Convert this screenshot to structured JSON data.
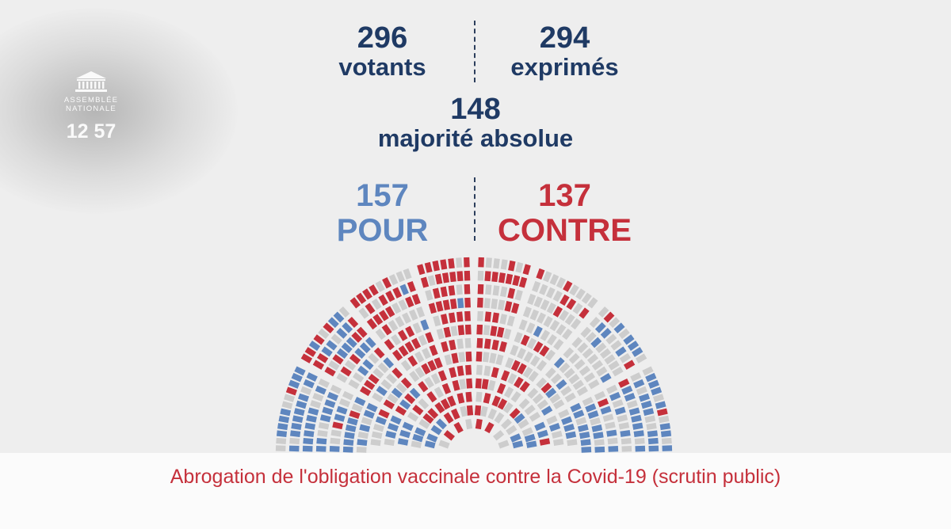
{
  "branding": {
    "logo_line1": "ASSEMBLÉE",
    "logo_line2": "NATIONALE",
    "clock": "12 57",
    "icon": "assemblee-building-icon"
  },
  "stats": {
    "votants": {
      "value": "296",
      "label": "votants"
    },
    "exprimes": {
      "value": "294",
      "label": "exprimés"
    },
    "majorite": {
      "value": "148",
      "label": "majorité absolue"
    },
    "pour": {
      "value": "157",
      "label": "POUR"
    },
    "contre": {
      "value": "137",
      "label": "CONTRE"
    }
  },
  "caption": "Abrogation de l'obligation vaccinale contre la Covid-19 (scrutin public)",
  "colors": {
    "navy": "#1f3a64",
    "pour": "#5e86bf",
    "contre": "#c5303b",
    "seat_empty": "#cdcdcd",
    "background": "#eeeeee"
  },
  "hemicycle": {
    "total_votes_pour": 157,
    "total_votes_contre": 137
  }
}
